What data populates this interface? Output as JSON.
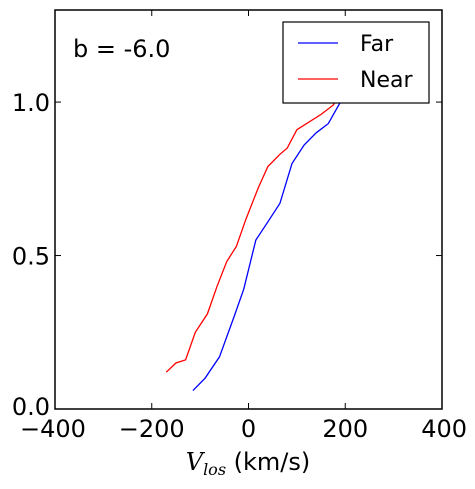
{
  "chart_data": {
    "type": "line",
    "annotation": "b = -6.0",
    "xlabel": {
      "symbol": "V",
      "subscript": "los",
      "unit": " (km/s)"
    },
    "ylabel": "",
    "xlim": [
      -400,
      400
    ],
    "ylim": [
      0.0,
      1.3
    ],
    "x_ticks": [
      -400,
      -200,
      0,
      200,
      400
    ],
    "x_tick_labels": [
      "−400",
      "−200",
      "0",
      "200",
      "400"
    ],
    "y_ticks": [
      0.0,
      0.5,
      1.0
    ],
    "y_tick_labels": [
      "0.0",
      "0.5",
      "1.0"
    ],
    "grid": false,
    "legend_position": "top-right",
    "series": [
      {
        "name": "Far",
        "color": "#0000ff",
        "x": [
          -115,
          -90,
          -60,
          -30,
          -10,
          15,
          40,
          65,
          90,
          115,
          140,
          165,
          190,
          210
        ],
        "y": [
          0.06,
          0.1,
          0.17,
          0.3,
          0.39,
          0.55,
          0.61,
          0.67,
          0.8,
          0.86,
          0.9,
          0.93,
          1.0,
          1.1
        ]
      },
      {
        "name": "Near",
        "color": "#ff0000",
        "x": [
          -170,
          -150,
          -130,
          -110,
          -85,
          -65,
          -45,
          -25,
          -5,
          20,
          40,
          65,
          80,
          100,
          120,
          150,
          175,
          200
        ],
        "y": [
          0.12,
          0.15,
          0.16,
          0.25,
          0.31,
          0.4,
          0.48,
          0.53,
          0.62,
          0.72,
          0.79,
          0.83,
          0.85,
          0.91,
          0.93,
          0.96,
          0.99,
          1.05
        ]
      }
    ]
  }
}
